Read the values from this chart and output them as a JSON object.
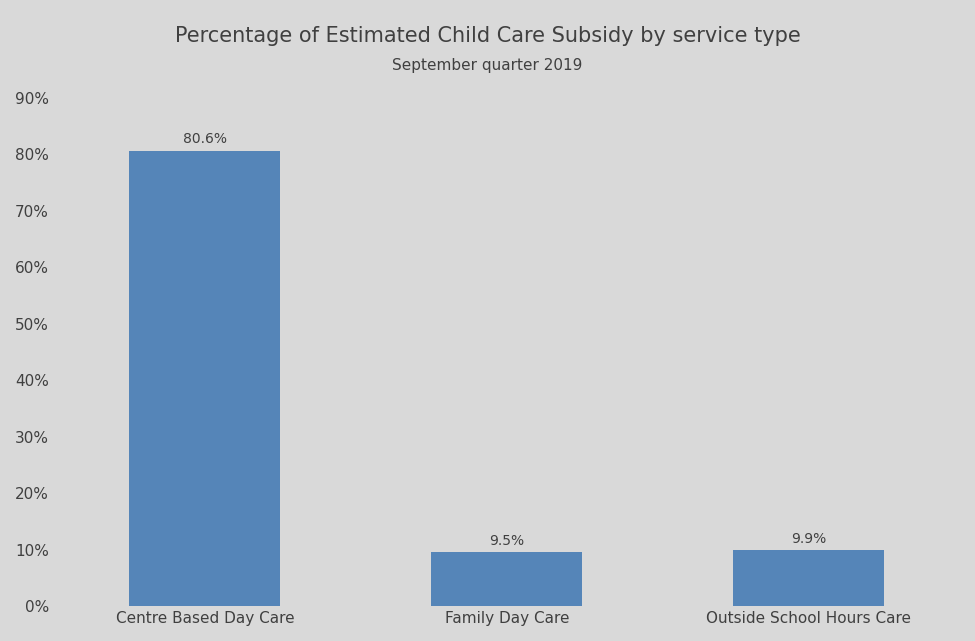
{
  "title": "Percentage of Estimated Child Care Subsidy by service type",
  "subtitle": "September quarter 2019",
  "categories": [
    "Centre Based Day Care",
    "Family Day Care",
    "Outside School Hours Care"
  ],
  "values": [
    80.6,
    9.5,
    9.9
  ],
  "bar_color": "#5585b8",
  "background_color": "#d9d9d9",
  "text_color": "#404040",
  "ylim": [
    0,
    90
  ],
  "yticks": [
    0,
    10,
    20,
    30,
    40,
    50,
    60,
    70,
    80,
    90
  ],
  "title_fontsize": 15,
  "subtitle_fontsize": 11,
  "label_fontsize": 11,
  "tick_fontsize": 11,
  "annotation_fontsize": 10
}
